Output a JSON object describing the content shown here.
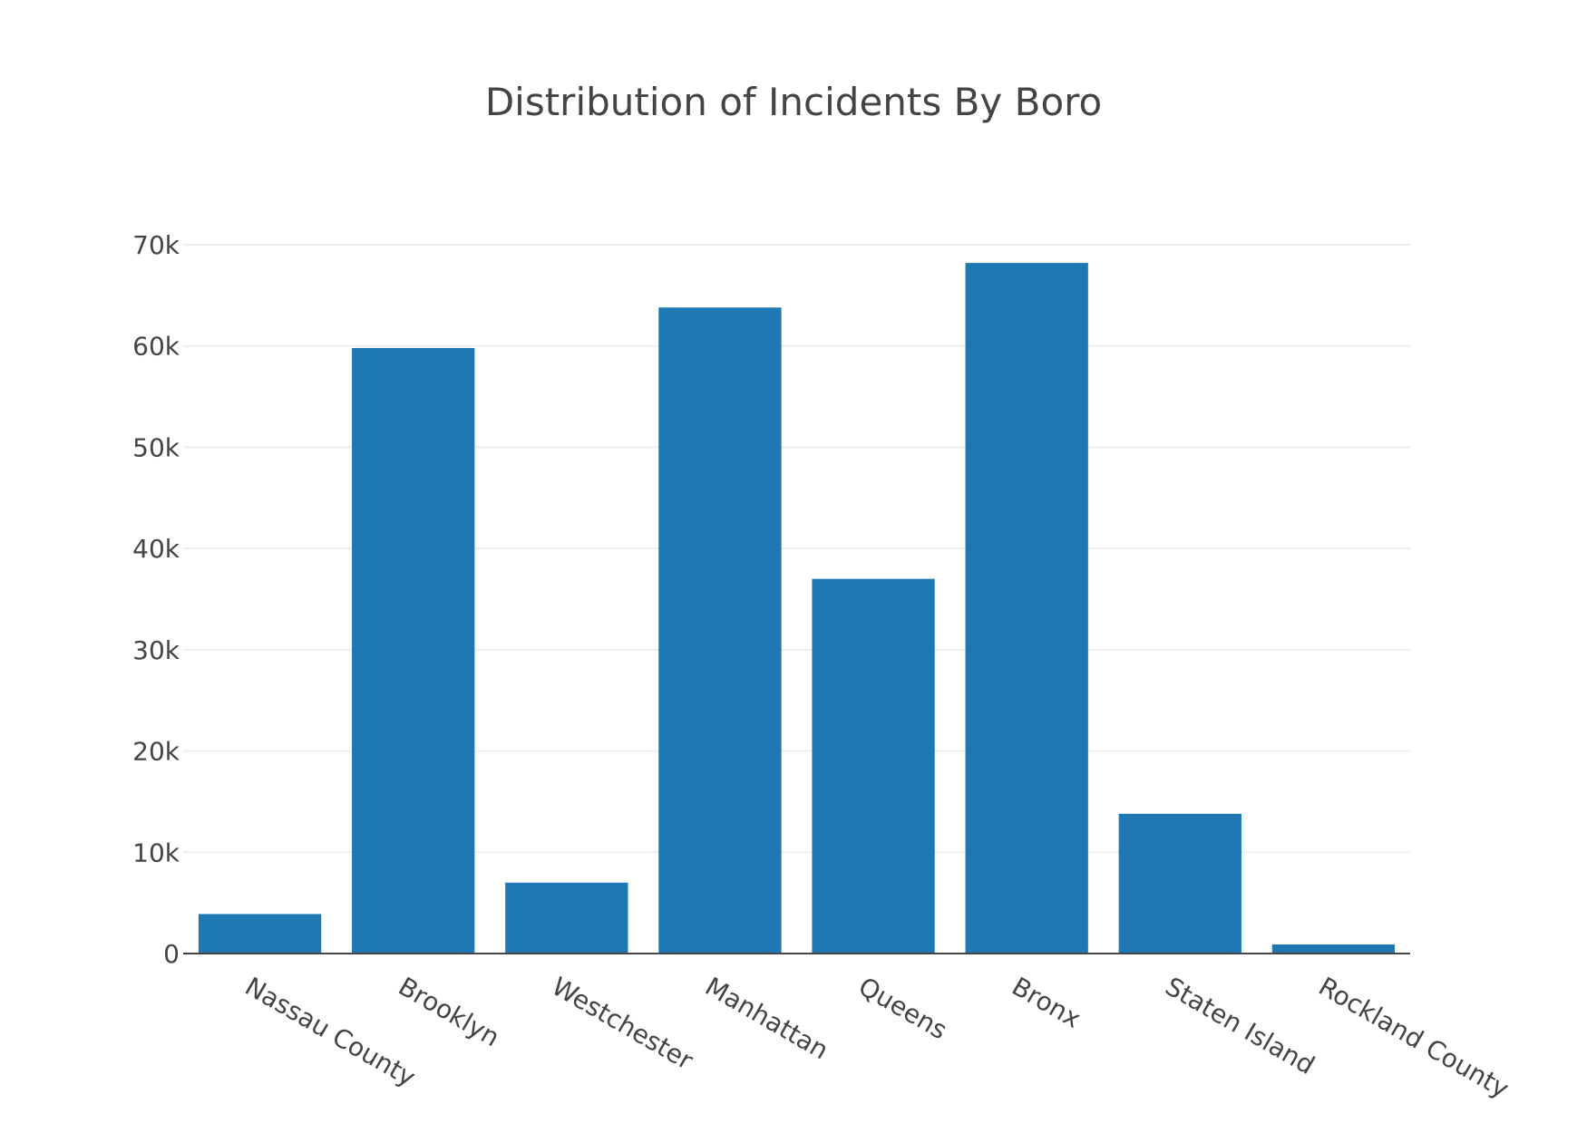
{
  "chart_data": {
    "type": "bar",
    "title": "Distribution of Incidents By Boro",
    "xlabel": "",
    "ylabel": "",
    "categories": [
      "Nassau County",
      "Brooklyn",
      "Westchester",
      "Manhattan",
      "Queens",
      "Bronx",
      "Staten Island",
      "Rockland County"
    ],
    "values": [
      3900,
      59800,
      7000,
      63800,
      37000,
      68200,
      13800,
      900
    ],
    "ylim": [
      0,
      70000
    ],
    "yticks": [
      0,
      10000,
      20000,
      30000,
      40000,
      50000,
      60000,
      70000
    ],
    "ytick_labels": [
      "0",
      "10k",
      "20k",
      "30k",
      "40k",
      "50k",
      "60k",
      "70k"
    ],
    "grid": true,
    "legend": "none",
    "colors": {
      "bar": "#1f77b4",
      "grid": "#eeeeee",
      "axis": "#444444",
      "text": "#444444"
    }
  }
}
